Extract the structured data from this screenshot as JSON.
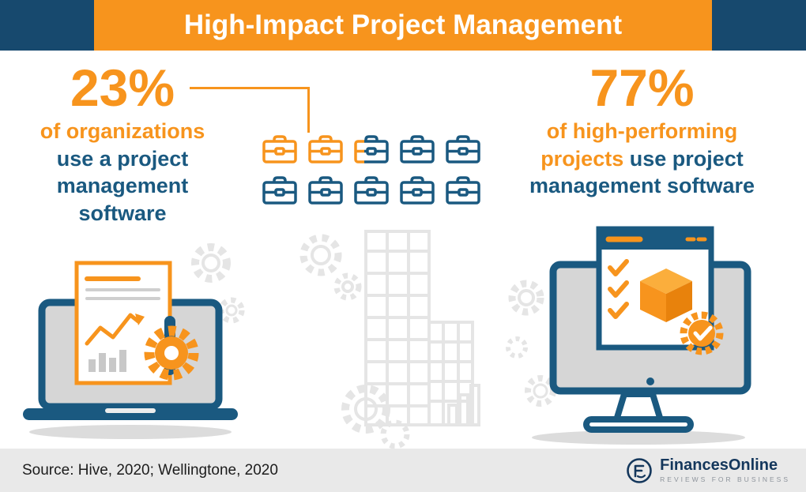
{
  "header": {
    "title": "High-Impact Project Management"
  },
  "left_stat": {
    "value": "23%",
    "line_orange": "of organizations",
    "line_blue": "use a project management software"
  },
  "right_stat": {
    "value": "77%",
    "line1": "of high-performing",
    "line2_orange": "projects",
    "line2_blue": "use project",
    "line3": "management software"
  },
  "pictogram": {
    "icon": "briefcase",
    "total_icons": 10,
    "highlighted_icons": 2.3
  },
  "footer": {
    "source": "Source: Hive, 2020; Wellingtone, 2020",
    "brand": "FinancesOnline",
    "brand_tagline": "REVIEWS FOR BUSINESS"
  },
  "colors": {
    "orange": "#F7941D",
    "blue": "#1A5980",
    "header_blue": "#17496E",
    "footer_bg": "#E9E9E9",
    "faded_gray": "#E5E5E5"
  },
  "chart_data": {
    "type": "bar",
    "title": "High-Impact Project Management",
    "categories": [
      "Organizations that use a project management software",
      "High-performing projects that use project management software"
    ],
    "values": [
      23,
      77
    ],
    "unit": "%",
    "pictogram": {
      "icon": "briefcase",
      "total_icons": 10,
      "highlighted_icons": 2.3
    },
    "source": "Hive, 2020; Wellingtone, 2020"
  }
}
